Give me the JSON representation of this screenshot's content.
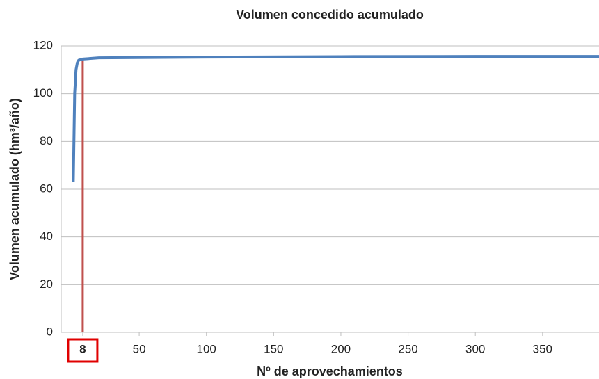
{
  "chart_data": {
    "type": "line",
    "title": "Volumen concedido acumulado",
    "xlabel": "Nº de aprovechamientos",
    "ylabel": "Volumen acumulado (hm³/año)",
    "x": [
      1,
      2,
      3,
      4,
      5,
      8,
      20,
      100,
      200,
      300,
      392
    ],
    "series": [
      {
        "name": "Volumen acumulado",
        "color": "#4f81bd",
        "values": [
          63,
          100,
          110,
          113,
          114,
          114.5,
          115,
          115.3,
          115.5,
          115.6,
          115.6
        ]
      }
    ],
    "xlim": [
      -8,
      392
    ],
    "xticks": [
      8,
      50,
      100,
      150,
      200,
      250,
      300,
      350
    ],
    "ylim": [
      0,
      120
    ],
    "yticks": [
      0,
      20,
      40,
      60,
      80,
      100,
      120
    ],
    "grid": true,
    "vline": {
      "x": 8,
      "y": 115,
      "color": "#c0504d"
    },
    "highlight_tick": 8
  }
}
